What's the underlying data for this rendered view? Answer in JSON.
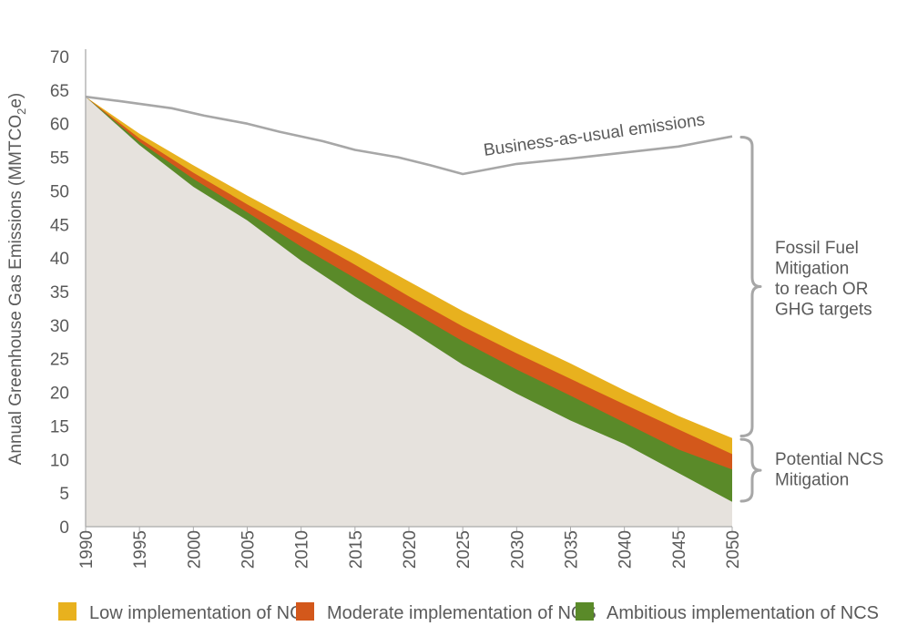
{
  "chart_data": {
    "type": "area",
    "ylabel": "Annual Greenhouse Gas Emissions (MMTCO",
    "ylabel_sub": "2",
    "ylabel_tail": "e)",
    "ylim": [
      0,
      70
    ],
    "xlim": [
      1990,
      2050
    ],
    "yticks": [
      0,
      5,
      10,
      15,
      20,
      25,
      30,
      35,
      40,
      45,
      50,
      55,
      60,
      65,
      70
    ],
    "xticks": [
      1990,
      1995,
      2000,
      2005,
      2010,
      2015,
      2020,
      2025,
      2030,
      2035,
      2040,
      2045,
      2050
    ],
    "x": [
      1990,
      1995,
      2000,
      2005,
      2010,
      2015,
      2020,
      2025,
      2030,
      2035,
      2040,
      2045,
      2050
    ],
    "bau": {
      "label": "Business-as-usual emissions",
      "x": [
        1990,
        1993,
        1998,
        2001,
        2005,
        2008,
        2012,
        2015,
        2019,
        2022,
        2025,
        2030,
        2035,
        2040,
        2045,
        2050
      ],
      "values": [
        64,
        63.4,
        62.3,
        61.2,
        60,
        58.8,
        57.4,
        56.1,
        55,
        53.8,
        52.5,
        54,
        54.8,
        55.7,
        56.6,
        58.1
      ]
    },
    "series": [
      {
        "name": "Low implementation of NCS",
        "color": "#e8b11e",
        "values": [
          64,
          58.5,
          53.8,
          49.3,
          45,
          40.9,
          36.5,
          32.1,
          28.1,
          24.3,
          20.3,
          16.5,
          13.2
        ]
      },
      {
        "name": "Moderate implementation of NCS",
        "color": "#d3581b",
        "values": [
          64,
          57.8,
          52.7,
          48,
          43.5,
          39,
          34.3,
          29.8,
          25.8,
          22,
          18.2,
          14.5,
          10.8
        ]
      },
      {
        "name": "Ambitious implementation of NCS",
        "color": "#5a8a29",
        "values": [
          64,
          57.3,
          51.8,
          46.8,
          41.7,
          37,
          32.3,
          27.6,
          23.4,
          19.5,
          15.5,
          11.5,
          8.5
        ]
      },
      {
        "name": "",
        "color": "#e6e2dd",
        "values": [
          64,
          56.8,
          50.6,
          45.6,
          39.6,
          34.3,
          29.3,
          24.1,
          19.8,
          15.8,
          12.3,
          8,
          3.7
        ]
      }
    ],
    "annotations": [
      {
        "text": [
          "Fossil Fuel",
          "Mitigation",
          "to reach OR",
          "GHG targets"
        ],
        "bracket": [
          13.5,
          58
        ]
      },
      {
        "text": [
          "Potential NCS",
          "Mitigation"
        ],
        "bracket": [
          3.8,
          13
        ]
      }
    ],
    "legend": [
      "Low implementation of NCS",
      "Moderate implementation of NCS",
      "Ambitious implementation of NCS"
    ],
    "legend_position": "bottom",
    "axis_color": "#aaaaaa",
    "bau_color": "#a7a7a7",
    "bracket_color": "#a7a7a7"
  }
}
